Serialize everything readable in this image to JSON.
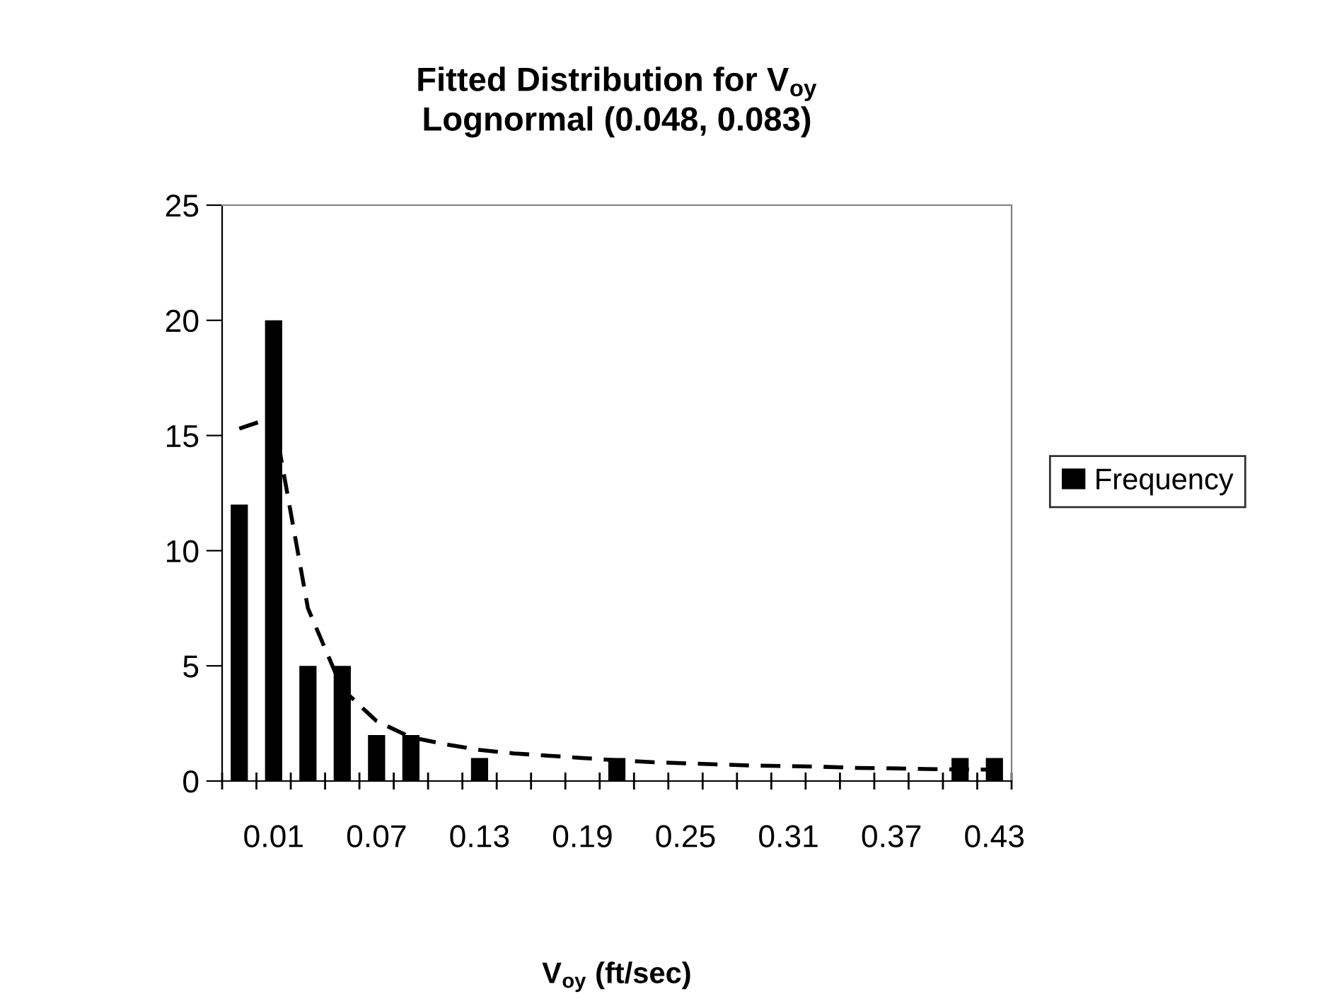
{
  "chart_data": {
    "type": "bar",
    "title": "Fitted Distribution for V$_{oy}$\nLognormal (0.048, 0.083)",
    "xlabel": "V$_{oy}$ (ft/sec)",
    "categories": [
      null,
      "0.01",
      null,
      null,
      "0.07",
      null,
      null,
      "0.13",
      null,
      null,
      "0.19",
      null,
      null,
      "0.25",
      null,
      null,
      "0.31",
      null,
      null,
      "0.37",
      null,
      null,
      "0.43"
    ],
    "series": [
      {
        "name": "Frequency",
        "color": "#000000",
        "values": [
          12,
          20,
          5,
          5,
          2,
          2,
          0,
          1,
          0,
          0,
          0,
          1,
          0,
          0,
          0,
          0,
          0,
          0,
          0,
          0,
          0,
          1,
          1
        ]
      },
      {
        "type": "line",
        "color": "#000000",
        "line_style": "dashed",
        "values": [
          15.3,
          15.8,
          7.5,
          4.0,
          2.6,
          1.9,
          1.6,
          1.35,
          1.2,
          1.1,
          1.0,
          0.9,
          0.82,
          0.77,
          0.72,
          0.67,
          0.65,
          0.62,
          0.57,
          0.55,
          0.52,
          0.5,
          0.5
        ]
      }
    ],
    "ylim": [
      0,
      25
    ],
    "yticks": [
      0,
      5,
      10,
      15,
      20,
      25
    ],
    "grid": false,
    "legend": "right"
  }
}
